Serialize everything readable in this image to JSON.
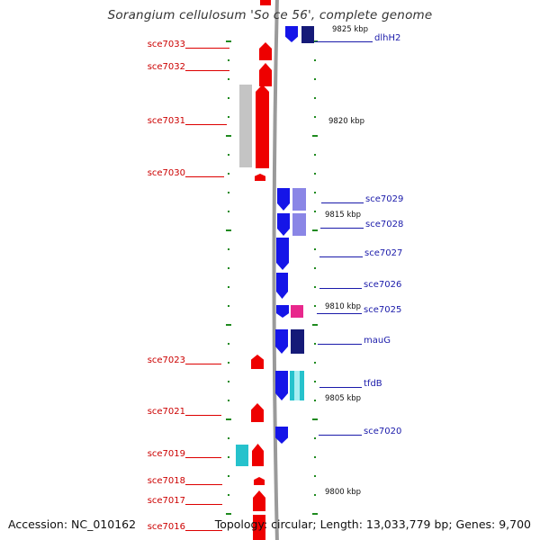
{
  "title": "Sorangium cellulosum 'So ce 56', complete genome",
  "accession": "Accession: NC_010162",
  "summary": "Topology: circular; Length: 13,033,779 bp; Genes: 9,700",
  "colors": {
    "forward": "#ee0000",
    "reverse": "#1515e8",
    "grey": "#c4c4c4",
    "lavender": "#8a86e6",
    "navy": "#151a78",
    "pink": "#e8288c",
    "cyan": "#26c2cc",
    "tick": "#1f8a1f",
    "backbone": "#9a9a9a"
  },
  "scale": {
    "ticks": [
      "9825 kbp",
      "9820 kbp",
      "9815 kbp",
      "9810 kbp",
      "9805 kbp",
      "9800 kbp"
    ]
  },
  "labels": {
    "forward": [
      "sce7033",
      "sce7032",
      "sce7031",
      "sce7030",
      "sce7023",
      "sce7021",
      "sce7019",
      "sce7018",
      "sce7017",
      "sce7016"
    ],
    "reverse": [
      "dlhH2",
      "sce7029",
      "sce7028",
      "sce7027",
      "sce7026",
      "sce7025",
      "mauG",
      "tfdB",
      "sce7020"
    ]
  }
}
